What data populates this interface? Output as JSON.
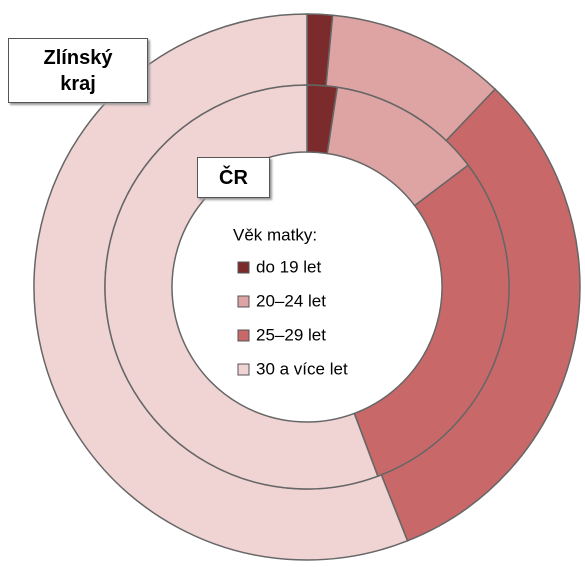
{
  "chart_data": {
    "type": "donut",
    "legend_title": "Věk matky:",
    "categories": [
      "do 19 let",
      "20–24 let",
      "25–29 let",
      "30 a více let"
    ],
    "colors": [
      "#7b2b2b",
      "#dea3a3",
      "#c96868",
      "#f0d3d3"
    ],
    "series": [
      {
        "name": "Zlínský kraj",
        "values": [
          1.5,
          10.6,
          31.9,
          56.0
        ]
      },
      {
        "name": "ČR",
        "values": [
          2.4,
          12.3,
          29.6,
          55.7
        ]
      }
    ]
  }
}
